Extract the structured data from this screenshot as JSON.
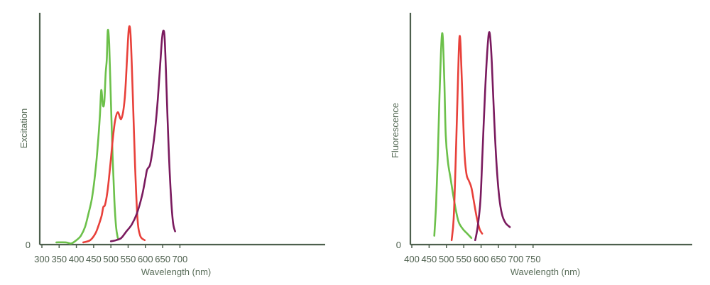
{
  "chart_data": [
    {
      "type": "line",
      "xlabel": "Wavelength (nm)",
      "ylabel": "Excitation",
      "xlim": [
        300,
        700
      ],
      "xticks": [
        300,
        350,
        400,
        450,
        500,
        550,
        600,
        650,
        700
      ],
      "y_zero_label": "0",
      "grid": false,
      "series": [
        {
          "color": "#6cc04a",
          "points": [
            [
              342,
              0.01
            ],
            [
              370,
              0.01
            ],
            [
              385,
              0.005
            ],
            [
              400,
              0.02
            ],
            [
              413,
              0.04
            ],
            [
              425,
              0.08
            ],
            [
              435,
              0.14
            ],
            [
              445,
              0.21
            ],
            [
              455,
              0.33
            ],
            [
              462,
              0.45
            ],
            [
              468,
              0.58
            ],
            [
              472,
              0.7
            ],
            [
              477,
              0.63
            ],
            [
              481,
              0.65
            ],
            [
              485,
              0.78
            ],
            [
              488,
              0.84
            ],
            [
              491,
              0.97
            ],
            [
              495,
              0.91
            ],
            [
              500,
              0.65
            ],
            [
              505,
              0.4
            ],
            [
              510,
              0.2
            ],
            [
              515,
              0.08
            ],
            [
              520,
              0.03
            ]
          ]
        },
        {
          "color": "#e8403a",
          "points": [
            [
              420,
              0.01
            ],
            [
              440,
              0.02
            ],
            [
              455,
              0.05
            ],
            [
              465,
              0.09
            ],
            [
              473,
              0.13
            ],
            [
              478,
              0.17
            ],
            [
              483,
              0.18
            ],
            [
              490,
              0.24
            ],
            [
              497,
              0.34
            ],
            [
              505,
              0.47
            ],
            [
              512,
              0.56
            ],
            [
              520,
              0.6
            ],
            [
              530,
              0.57
            ],
            [
              540,
              0.66
            ],
            [
              547,
              0.85
            ],
            [
              552,
              0.98
            ],
            [
              557,
              0.95
            ],
            [
              563,
              0.7
            ],
            [
              570,
              0.36
            ],
            [
              577,
              0.12
            ],
            [
              585,
              0.04
            ],
            [
              598,
              0.02
            ]
          ]
        },
        {
          "color": "#7a1a5e",
          "points": [
            [
              500,
              0.015
            ],
            [
              515,
              0.02
            ],
            [
              530,
              0.03
            ],
            [
              545,
              0.06
            ],
            [
              560,
              0.09
            ],
            [
              575,
              0.14
            ],
            [
              590,
              0.22
            ],
            [
              600,
              0.3
            ],
            [
              605,
              0.34
            ],
            [
              613,
              0.36
            ],
            [
              620,
              0.42
            ],
            [
              628,
              0.52
            ],
            [
              636,
              0.66
            ],
            [
              643,
              0.82
            ],
            [
              648,
              0.93
            ],
            [
              652,
              0.97
            ],
            [
              656,
              0.93
            ],
            [
              661,
              0.72
            ],
            [
              667,
              0.45
            ],
            [
              674,
              0.22
            ],
            [
              680,
              0.1
            ],
            [
              686,
              0.06
            ]
          ]
        }
      ]
    },
    {
      "type": "line",
      "xlabel": "Wavelength (nm)",
      "ylabel": "Fluorescence",
      "xlim": [
        400,
        750
      ],
      "xticks": [
        400,
        450,
        500,
        550,
        600,
        650,
        700,
        750
      ],
      "y_zero_label": "0",
      "grid": false,
      "series": [
        {
          "color": "#6cc04a",
          "points": [
            [
              465,
              0.04
            ],
            [
              470,
              0.18
            ],
            [
              475,
              0.4
            ],
            [
              480,
              0.68
            ],
            [
              484,
              0.87
            ],
            [
              487,
              0.96
            ],
            [
              490,
              0.93
            ],
            [
              494,
              0.74
            ],
            [
              498,
              0.5
            ],
            [
              504,
              0.38
            ],
            [
              512,
              0.3
            ],
            [
              520,
              0.22
            ],
            [
              528,
              0.15
            ],
            [
              536,
              0.1
            ],
            [
              548,
              0.07
            ],
            [
              560,
              0.05
            ],
            [
              572,
              0.03
            ]
          ]
        },
        {
          "color": "#e8403a",
          "points": [
            [
              515,
              0.02
            ],
            [
              521,
              0.12
            ],
            [
              526,
              0.35
            ],
            [
              531,
              0.62
            ],
            [
              535,
              0.85
            ],
            [
              538,
              0.95
            ],
            [
              541,
              0.9
            ],
            [
              546,
              0.68
            ],
            [
              552,
              0.42
            ],
            [
              558,
              0.32
            ],
            [
              565,
              0.29
            ],
            [
              572,
              0.26
            ],
            [
              580,
              0.19
            ],
            [
              588,
              0.12
            ],
            [
              596,
              0.07
            ],
            [
              603,
              0.05
            ]
          ]
        },
        {
          "color": "#7a1a5e",
          "points": [
            [
              583,
              0.02
            ],
            [
              590,
              0.08
            ],
            [
              598,
              0.2
            ],
            [
              604,
              0.42
            ],
            [
              611,
              0.68
            ],
            [
              617,
              0.86
            ],
            [
              622,
              0.96
            ],
            [
              626,
              0.95
            ],
            [
              631,
              0.83
            ],
            [
              637,
              0.6
            ],
            [
              644,
              0.38
            ],
            [
              652,
              0.22
            ],
            [
              660,
              0.14
            ],
            [
              670,
              0.1
            ],
            [
              683,
              0.08
            ]
          ]
        }
      ]
    }
  ]
}
